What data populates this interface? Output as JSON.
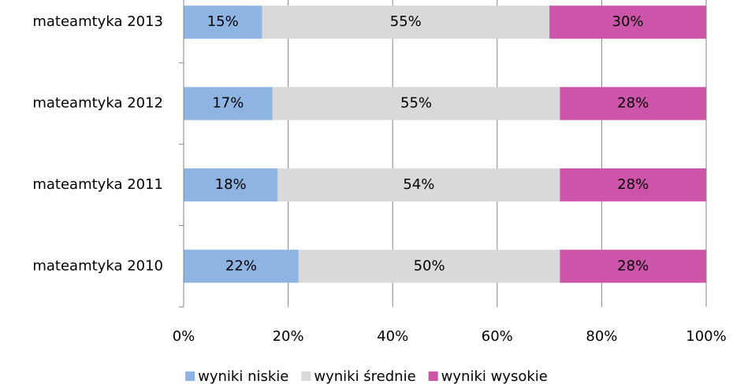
{
  "chart_data": {
    "type": "stacked_bar_horizontal",
    "categories": [
      "mateamtyka 2013",
      "mateamtyka 2012",
      "mateamtyka 2011",
      "mateamtyka 2010"
    ],
    "series": [
      {
        "name": "wyniki niskie",
        "color": "#8db4e2",
        "values": [
          15,
          17,
          18,
          22
        ],
        "value_labels": [
          "15%",
          "17%",
          "18%",
          "22%"
        ]
      },
      {
        "name": "wyniki średnie",
        "color": "#d9d9d9",
        "values": [
          55,
          55,
          54,
          50
        ],
        "value_labels": [
          "55%",
          "55%",
          "54%",
          "50%"
        ]
      },
      {
        "name": "wyniki wysokie",
        "color": "#cc55aa",
        "values": [
          30,
          28,
          28,
          28
        ],
        "value_labels": [
          "30%",
          "28%",
          "28%",
          "28%"
        ]
      }
    ],
    "xlim": [
      0,
      100
    ],
    "xticks": [
      {
        "value": 0,
        "label": "0%"
      },
      {
        "value": 20,
        "label": "20%"
      },
      {
        "value": 40,
        "label": "40%"
      },
      {
        "value": 60,
        "label": "60%"
      },
      {
        "value": 80,
        "label": "80%"
      },
      {
        "value": 100,
        "label": "100%"
      }
    ],
    "grid": true,
    "legend": "bottom"
  }
}
